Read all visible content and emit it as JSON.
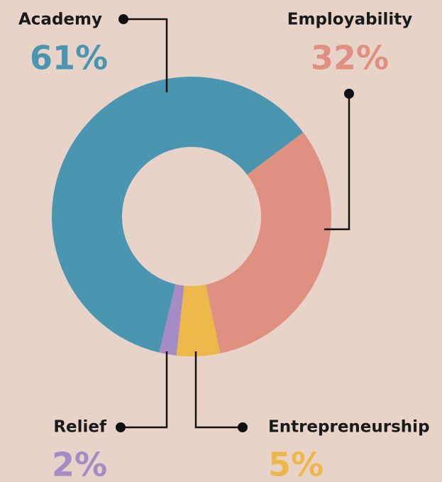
{
  "chart_data": {
    "type": "pie",
    "categories": [
      "Employability",
      "Entrepreneurship",
      "Relief",
      "Academy"
    ],
    "values": [
      32,
      5,
      2,
      61
    ],
    "value_labels": [
      "32%",
      "5%",
      "2%",
      "61%"
    ],
    "colors": [
      "#e09080",
      "#ecb84a",
      "#a68cc4",
      "#4a96b0"
    ]
  }
}
